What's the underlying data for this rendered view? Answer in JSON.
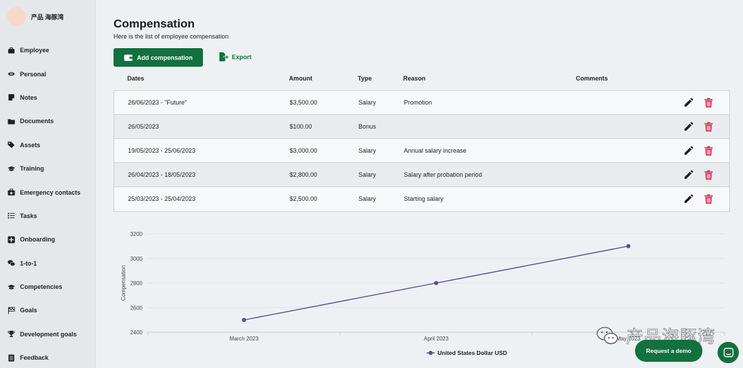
{
  "profile": {
    "name": "产品 海豚湾"
  },
  "sidebar": {
    "items": [
      {
        "key": "employee",
        "label": "Employee",
        "icon": "briefcase-icon"
      },
      {
        "key": "personal",
        "label": "Personal",
        "icon": "eye-icon"
      },
      {
        "key": "notes",
        "label": "Notes",
        "icon": "note-icon"
      },
      {
        "key": "documents",
        "label": "Documents",
        "icon": "folder-icon"
      },
      {
        "key": "assets",
        "label": "Assets",
        "icon": "tags-icon"
      },
      {
        "key": "training",
        "label": "Training",
        "icon": "graduation-cap-icon"
      },
      {
        "key": "emergency-contacts",
        "label": "Emergency contacts",
        "icon": "medkit-icon"
      },
      {
        "key": "tasks",
        "label": "Tasks",
        "icon": "checklist-icon"
      },
      {
        "key": "onboarding",
        "label": "Onboarding",
        "icon": "plus-square-icon"
      },
      {
        "key": "one-to-one",
        "label": "1-to-1",
        "icon": "chat-bubbles-icon"
      },
      {
        "key": "competencies",
        "label": "Competencies",
        "icon": "graduation-cap-icon"
      },
      {
        "key": "goals",
        "label": "Goals",
        "icon": "flag-checkered-icon"
      },
      {
        "key": "development-goals",
        "label": "Development goals",
        "icon": "trophy-icon"
      },
      {
        "key": "feedback",
        "label": "Feedback",
        "icon": "list-doc-icon"
      }
    ]
  },
  "page": {
    "title": "Compensation",
    "subtitle": "Here is the list of employee compensation",
    "add_label": "Add compensation",
    "export_label": "Export"
  },
  "table": {
    "headers": {
      "dates": "Dates",
      "amount": "Amount",
      "type": "Type",
      "reason": "Reason",
      "comments": "Comments"
    },
    "rows": [
      {
        "dates": "26/06/2023 - \"Future\"",
        "amount": "$3,500.00",
        "type": "Salary",
        "reason": "Promotion",
        "comments": ""
      },
      {
        "dates": "26/05/2023",
        "amount": "$100.00",
        "type": "Bonus",
        "reason": "",
        "comments": ""
      },
      {
        "dates": "19/05/2023 - 25/06/2023",
        "amount": "$3,000.00",
        "type": "Salary",
        "reason": "Annual salary increase",
        "comments": ""
      },
      {
        "dates": "26/04/2023 - 18/05/2023",
        "amount": "$2,800.00",
        "type": "Salary",
        "reason": "Salary after probation period",
        "comments": ""
      },
      {
        "dates": "25/03/2023 - 25/04/2023",
        "amount": "$2,500.00",
        "type": "Salary",
        "reason": "Starting salary",
        "comments": ""
      }
    ]
  },
  "chart_data": {
    "type": "line",
    "categories": [
      "March 2023",
      "April 2023",
      "May 2023"
    ],
    "series": [
      {
        "name": "United States Dollar USD",
        "values": [
          2500,
          2800,
          3100
        ],
        "color": "#5a4a9c"
      }
    ],
    "ylabel": "Compensation",
    "yticks": [
      2400,
      2600,
      2800,
      3000,
      3200
    ],
    "ylim": [
      2400,
      3200
    ],
    "grid": true,
    "legend": "bottom-center"
  },
  "watermark": {
    "text": "产品海豚湾"
  },
  "floating": {
    "demo_label": "Request a demo"
  },
  "colors": {
    "brand": "#13703f",
    "delete": "#d9344c",
    "series": "#5a4a9c"
  }
}
